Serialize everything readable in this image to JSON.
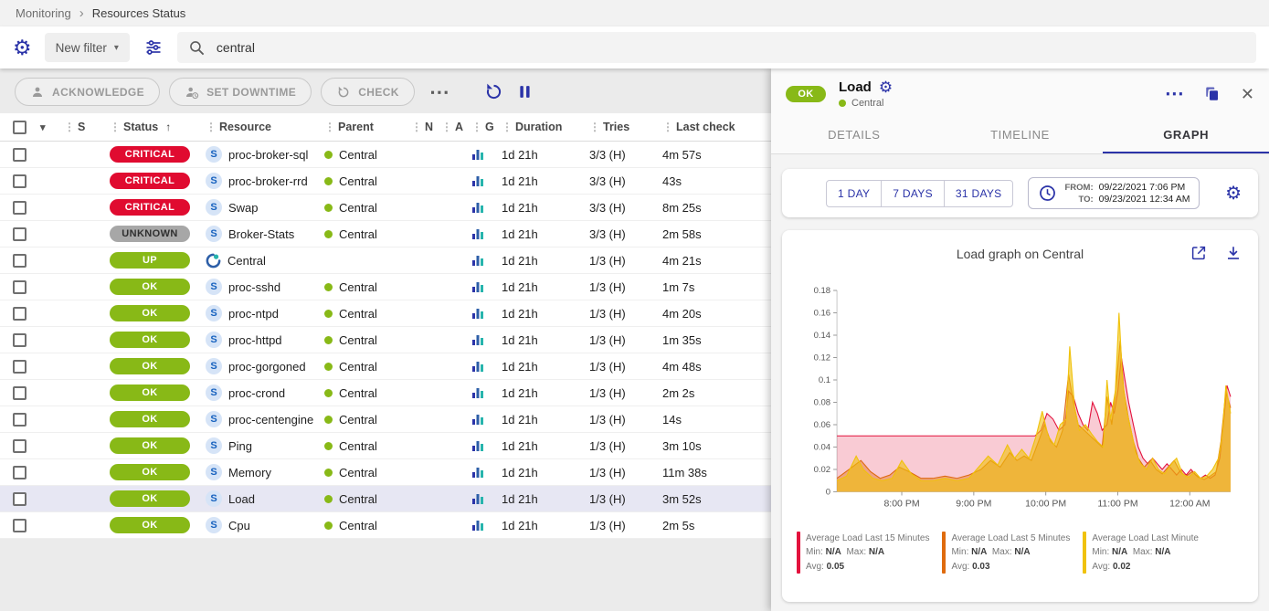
{
  "breadcrumb": {
    "items": [
      "Monitoring",
      "Resources Status"
    ]
  },
  "filter": {
    "new_filter_label": "New filter",
    "search_value": "central"
  },
  "toolbar": {
    "acknowledge_label": "ACKNOWLEDGE",
    "set_downtime_label": "SET DOWNTIME",
    "check_label": "CHECK"
  },
  "table": {
    "columns": [
      {
        "label": "S",
        "sorted": false
      },
      {
        "label": "Status",
        "sorted": true
      },
      {
        "label": "Resource",
        "sorted": false
      },
      {
        "label": "Parent",
        "sorted": false
      },
      {
        "label": "N",
        "sorted": false
      },
      {
        "label": "A",
        "sorted": false
      },
      {
        "label": "G",
        "sorted": false
      },
      {
        "label": "Duration",
        "sorted": false
      },
      {
        "label": "Tries",
        "sorted": false
      },
      {
        "label": "Last check",
        "sorted": false
      }
    ],
    "rows": [
      {
        "status": "CRITICAL",
        "type": "service",
        "resource": "proc-broker-sql",
        "parent": "Central",
        "duration": "1d 21h",
        "tries": "3/3 (H)",
        "last_check": "4m 57s",
        "selected": false
      },
      {
        "status": "CRITICAL",
        "type": "service",
        "resource": "proc-broker-rrd",
        "parent": "Central",
        "duration": "1d 21h",
        "tries": "3/3 (H)",
        "last_check": "43s",
        "selected": false
      },
      {
        "status": "CRITICAL",
        "type": "service",
        "resource": "Swap",
        "parent": "Central",
        "duration": "1d 21h",
        "tries": "3/3 (H)",
        "last_check": "8m 25s",
        "selected": false
      },
      {
        "status": "UNKNOWN",
        "type": "service",
        "resource": "Broker-Stats",
        "parent": "Central",
        "duration": "1d 21h",
        "tries": "3/3 (H)",
        "last_check": "2m 58s",
        "selected": false
      },
      {
        "status": "UP",
        "type": "host",
        "resource": "Central",
        "parent": "",
        "duration": "1d 21h",
        "tries": "1/3 (H)",
        "last_check": "4m 21s",
        "selected": false
      },
      {
        "status": "OK",
        "type": "service",
        "resource": "proc-sshd",
        "parent": "Central",
        "duration": "1d 21h",
        "tries": "1/3 (H)",
        "last_check": "1m 7s",
        "selected": false
      },
      {
        "status": "OK",
        "type": "service",
        "resource": "proc-ntpd",
        "parent": "Central",
        "duration": "1d 21h",
        "tries": "1/3 (H)",
        "last_check": "4m 20s",
        "selected": false
      },
      {
        "status": "OK",
        "type": "service",
        "resource": "proc-httpd",
        "parent": "Central",
        "duration": "1d 21h",
        "tries": "1/3 (H)",
        "last_check": "1m 35s",
        "selected": false
      },
      {
        "status": "OK",
        "type": "service",
        "resource": "proc-gorgoned",
        "parent": "Central",
        "duration": "1d 21h",
        "tries": "1/3 (H)",
        "last_check": "4m 48s",
        "selected": false
      },
      {
        "status": "OK",
        "type": "service",
        "resource": "proc-crond",
        "parent": "Central",
        "duration": "1d 21h",
        "tries": "1/3 (H)",
        "last_check": "2m 2s",
        "selected": false
      },
      {
        "status": "OK",
        "type": "service",
        "resource": "proc-centengine",
        "parent": "Central",
        "duration": "1d 21h",
        "tries": "1/3 (H)",
        "last_check": "14s",
        "selected": false
      },
      {
        "status": "OK",
        "type": "service",
        "resource": "Ping",
        "parent": "Central",
        "duration": "1d 21h",
        "tries": "1/3 (H)",
        "last_check": "3m 10s",
        "selected": false
      },
      {
        "status": "OK",
        "type": "service",
        "resource": "Memory",
        "parent": "Central",
        "duration": "1d 21h",
        "tries": "1/3 (H)",
        "last_check": "11m 38s",
        "selected": false
      },
      {
        "status": "OK",
        "type": "service",
        "resource": "Load",
        "parent": "Central",
        "duration": "1d 21h",
        "tries": "1/3 (H)",
        "last_check": "3m 52s",
        "selected": true
      },
      {
        "status": "OK",
        "type": "service",
        "resource": "Cpu",
        "parent": "Central",
        "duration": "1d 21h",
        "tries": "1/3 (H)",
        "last_check": "2m 5s",
        "selected": false
      }
    ]
  },
  "panel": {
    "status": "OK",
    "title": "Load",
    "parent": "Central",
    "tabs": [
      {
        "label": "DETAILS",
        "active": false
      },
      {
        "label": "TIMELINE",
        "active": false
      },
      {
        "label": "GRAPH",
        "active": true
      }
    ],
    "range_buttons": [
      "1 DAY",
      "7 DAYS",
      "31 DAYS"
    ],
    "from_label": "FROM:",
    "from_value": "09/22/2021 7:06 PM",
    "to_label": "TO:",
    "to_value": "09/23/2021 12:34 AM"
  },
  "chart_data": {
    "type": "area",
    "title": "Load graph on Central",
    "xlabel": "",
    "ylabel": "",
    "ylim": [
      0,
      0.18
    ],
    "y_ticks": [
      "0",
      "0.02",
      "0.04",
      "0.06",
      "0.08",
      "0.1",
      "0.12",
      "0.14",
      "0.16",
      "0.18"
    ],
    "x_domain_minutes": [
      0,
      328
    ],
    "x_start_time": "7:06 PM",
    "x_end_time": "12:34 AM",
    "x_ticks": [
      {
        "label": "8:00 PM",
        "t": 54
      },
      {
        "label": "9:00 PM",
        "t": 114
      },
      {
        "label": "10:00 PM",
        "t": 174
      },
      {
        "label": "11:00 PM",
        "t": 234
      },
      {
        "label": "12:00 AM",
        "t": 294
      }
    ],
    "grid": false,
    "legend_position": "bottom",
    "legend_labels": {
      "min": "Min:",
      "max": "Max:",
      "avg": "Avg:"
    },
    "series": [
      {
        "name": "Average Load Last 15 Minutes",
        "color": "#e3123d",
        "min": "N/A",
        "max": "N/A",
        "avg": "0.05",
        "points": [
          [
            0,
            0.05
          ],
          [
            40,
            0.05
          ],
          [
            80,
            0.05
          ],
          [
            120,
            0.05
          ],
          [
            150,
            0.05
          ],
          [
            165,
            0.05
          ],
          [
            170,
            0.055
          ],
          [
            175,
            0.07
          ],
          [
            180,
            0.065
          ],
          [
            185,
            0.055
          ],
          [
            190,
            0.06
          ],
          [
            193,
            0.09
          ],
          [
            197,
            0.085
          ],
          [
            201,
            0.07
          ],
          [
            205,
            0.06
          ],
          [
            209,
            0.055
          ],
          [
            213,
            0.08
          ],
          [
            217,
            0.07
          ],
          [
            221,
            0.055
          ],
          [
            225,
            0.06
          ],
          [
            228,
            0.08
          ],
          [
            231,
            0.07
          ],
          [
            234,
            0.09
          ],
          [
            237,
            0.12
          ],
          [
            240,
            0.1
          ],
          [
            243,
            0.08
          ],
          [
            247,
            0.06
          ],
          [
            251,
            0.04
          ],
          [
            255,
            0.03
          ],
          [
            259,
            0.025
          ],
          [
            263,
            0.03
          ],
          [
            267,
            0.025
          ],
          [
            271,
            0.02
          ],
          [
            275,
            0.025
          ],
          [
            279,
            0.02
          ],
          [
            283,
            0.015
          ],
          [
            287,
            0.02
          ],
          [
            291,
            0.015
          ],
          [
            295,
            0.02
          ],
          [
            299,
            0.015
          ],
          [
            303,
            0.012
          ],
          [
            307,
            0.015
          ],
          [
            311,
            0.012
          ],
          [
            315,
            0.015
          ],
          [
            319,
            0.03
          ],
          [
            322,
            0.06
          ],
          [
            325,
            0.095
          ],
          [
            328,
            0.085
          ]
        ]
      },
      {
        "name": "Average Load Last 5 Minutes",
        "color": "#df6b0e",
        "min": "N/A",
        "max": "N/A",
        "avg": "0.03",
        "points": [
          [
            0,
            0.012
          ],
          [
            10,
            0.02
          ],
          [
            20,
            0.028
          ],
          [
            28,
            0.018
          ],
          [
            36,
            0.012
          ],
          [
            44,
            0.015
          ],
          [
            52,
            0.022
          ],
          [
            60,
            0.018
          ],
          [
            70,
            0.012
          ],
          [
            80,
            0.012
          ],
          [
            90,
            0.014
          ],
          [
            100,
            0.012
          ],
          [
            110,
            0.015
          ],
          [
            120,
            0.02
          ],
          [
            128,
            0.028
          ],
          [
            136,
            0.022
          ],
          [
            144,
            0.035
          ],
          [
            150,
            0.028
          ],
          [
            156,
            0.032
          ],
          [
            162,
            0.028
          ],
          [
            168,
            0.045
          ],
          [
            173,
            0.06
          ],
          [
            178,
            0.045
          ],
          [
            183,
            0.04
          ],
          [
            188,
            0.055
          ],
          [
            193,
            0.105
          ],
          [
            197,
            0.08
          ],
          [
            201,
            0.06
          ],
          [
            206,
            0.055
          ],
          [
            211,
            0.05
          ],
          [
            216,
            0.045
          ],
          [
            221,
            0.04
          ],
          [
            225,
            0.085
          ],
          [
            229,
            0.06
          ],
          [
            233,
            0.1
          ],
          [
            236,
            0.135
          ],
          [
            239,
            0.09
          ],
          [
            243,
            0.065
          ],
          [
            247,
            0.045
          ],
          [
            251,
            0.03
          ],
          [
            256,
            0.022
          ],
          [
            261,
            0.028
          ],
          [
            266,
            0.02
          ],
          [
            271,
            0.016
          ],
          [
            276,
            0.022
          ],
          [
            281,
            0.028
          ],
          [
            286,
            0.018
          ],
          [
            291,
            0.014
          ],
          [
            296,
            0.018
          ],
          [
            301,
            0.013
          ],
          [
            306,
            0.011
          ],
          [
            311,
            0.014
          ],
          [
            316,
            0.018
          ],
          [
            320,
            0.045
          ],
          [
            324,
            0.09
          ],
          [
            328,
            0.075
          ]
        ]
      },
      {
        "name": "Average Load Last Minute",
        "color": "#f0c20c",
        "min": "N/A",
        "max": "N/A",
        "avg": "0.02",
        "points": [
          [
            0,
            0.01
          ],
          [
            8,
            0.014
          ],
          [
            16,
            0.032
          ],
          [
            22,
            0.02
          ],
          [
            30,
            0.012
          ],
          [
            38,
            0.01
          ],
          [
            46,
            0.012
          ],
          [
            54,
            0.028
          ],
          [
            62,
            0.016
          ],
          [
            70,
            0.01
          ],
          [
            80,
            0.01
          ],
          [
            90,
            0.012
          ],
          [
            100,
            0.01
          ],
          [
            110,
            0.012
          ],
          [
            118,
            0.022
          ],
          [
            126,
            0.032
          ],
          [
            134,
            0.024
          ],
          [
            142,
            0.042
          ],
          [
            148,
            0.03
          ],
          [
            154,
            0.038
          ],
          [
            160,
            0.03
          ],
          [
            166,
            0.05
          ],
          [
            171,
            0.072
          ],
          [
            176,
            0.05
          ],
          [
            181,
            0.042
          ],
          [
            186,
            0.06
          ],
          [
            191,
            0.065
          ],
          [
            194,
            0.13
          ],
          [
            198,
            0.075
          ],
          [
            202,
            0.055
          ],
          [
            207,
            0.06
          ],
          [
            212,
            0.052
          ],
          [
            217,
            0.045
          ],
          [
            222,
            0.04
          ],
          [
            225,
            0.1
          ],
          [
            228,
            0.065
          ],
          [
            232,
            0.09
          ],
          [
            235,
            0.16
          ],
          [
            238,
            0.1
          ],
          [
            241,
            0.075
          ],
          [
            245,
            0.055
          ],
          [
            249,
            0.035
          ],
          [
            253,
            0.025
          ],
          [
            258,
            0.02
          ],
          [
            263,
            0.03
          ],
          [
            268,
            0.02
          ],
          [
            273,
            0.016
          ],
          [
            278,
            0.024
          ],
          [
            283,
            0.03
          ],
          [
            288,
            0.016
          ],
          [
            293,
            0.013
          ],
          [
            298,
            0.018
          ],
          [
            303,
            0.012
          ],
          [
            308,
            0.014
          ],
          [
            313,
            0.02
          ],
          [
            318,
            0.03
          ],
          [
            321,
            0.05
          ],
          [
            324,
            0.095
          ],
          [
            328,
            0.07
          ]
        ]
      }
    ]
  },
  "colors": {
    "accent": "#2b33a8",
    "ok_green": "#88b917",
    "critical_red": "#e00b30",
    "unknown_gray": "#a7a7a7",
    "selected_row": "#e7e7f3",
    "status": {
      "CRITICAL": "#e00b30",
      "UNKNOWN": "#a7a7a7",
      "UP": "#88b917",
      "OK": "#88b917"
    },
    "status_text": {
      "CRITICAL": "#ffffff",
      "UNKNOWN": "#2f2f2f",
      "UP": "#ffffff",
      "OK": "#ffffff"
    }
  }
}
